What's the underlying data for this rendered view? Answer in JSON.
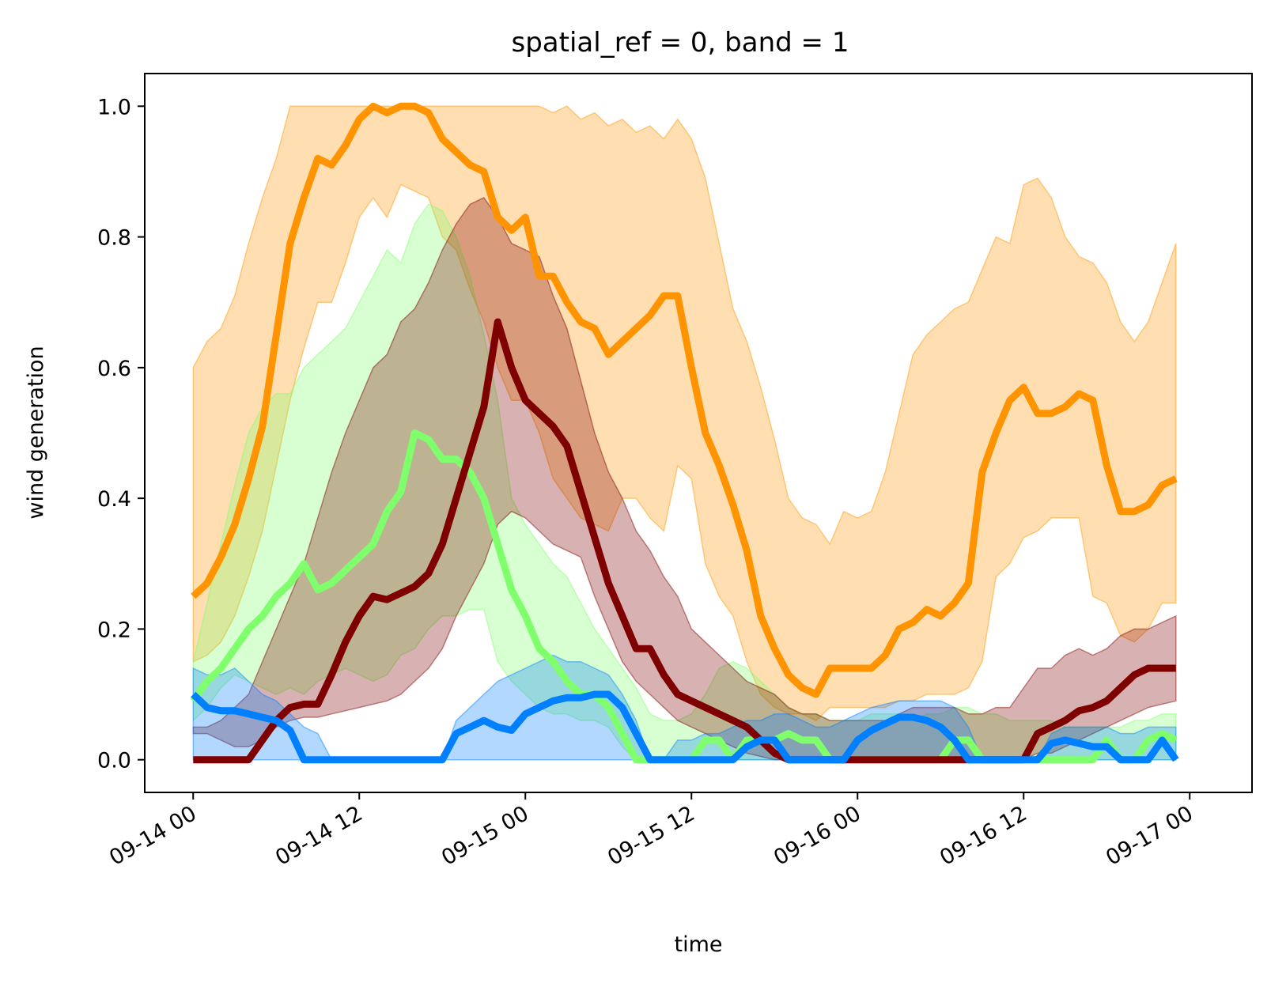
{
  "chart_data": {
    "type": "line",
    "title": "spatial_ref = 0, band = 1",
    "xlabel": "time",
    "ylabel": "wind generation",
    "x_start": "09-14 00",
    "x_step_hours": 1,
    "xlim_hours": [
      -3.5,
      76.5
    ],
    "ylim": [
      -0.05,
      1.05
    ],
    "x_tick_hours": [
      0,
      12,
      24,
      36,
      48,
      60,
      72
    ],
    "x_tick_labels": [
      "09-14 00",
      "09-14 12",
      "09-15 00",
      "09-15 12",
      "09-16 00",
      "09-16 12",
      "09-17 00"
    ],
    "y_ticks": [
      0.0,
      0.2,
      0.4,
      0.6,
      0.8,
      1.0
    ],
    "y_tick_labels": [
      "0.0",
      "0.2",
      "0.4",
      "0.6",
      "0.8",
      "1.0"
    ],
    "grid": false,
    "legend": "none",
    "series": [
      {
        "color": "#ff9400",
        "values": [
          0.25,
          0.27,
          0.31,
          0.36,
          0.43,
          0.51,
          0.65,
          0.79,
          0.86,
          0.92,
          0.91,
          0.94,
          0.98,
          1.0,
          0.99,
          1.0,
          1.0,
          0.99,
          0.95,
          0.93,
          0.91,
          0.9,
          0.83,
          0.81,
          0.83,
          0.74,
          0.74,
          0.7,
          0.67,
          0.66,
          0.62,
          0.64,
          0.66,
          0.68,
          0.71,
          0.71,
          0.6,
          0.5,
          0.45,
          0.39,
          0.32,
          0.22,
          0.17,
          0.13,
          0.11,
          0.1,
          0.14,
          0.14,
          0.14,
          0.14,
          0.16,
          0.2,
          0.21,
          0.23,
          0.22,
          0.24,
          0.27,
          0.44,
          0.5,
          0.55,
          0.57,
          0.53,
          0.53,
          0.54,
          0.56,
          0.55,
          0.45,
          0.38,
          0.38,
          0.39,
          0.42,
          0.43
        ],
        "lower": [
          0.15,
          0.16,
          0.18,
          0.22,
          0.28,
          0.35,
          0.45,
          0.55,
          0.63,
          0.7,
          0.7,
          0.76,
          0.83,
          0.86,
          0.83,
          0.88,
          0.87,
          0.86,
          0.8,
          0.78,
          0.72,
          0.67,
          0.6,
          0.55,
          0.55,
          0.5,
          0.43,
          0.4,
          0.37,
          0.36,
          0.35,
          0.4,
          0.4,
          0.37,
          0.35,
          0.45,
          0.43,
          0.3,
          0.25,
          0.22,
          0.15,
          0.1,
          0.08,
          0.07,
          0.07,
          0.06,
          0.08,
          0.08,
          0.08,
          0.08,
          0.08,
          0.09,
          0.09,
          0.1,
          0.1,
          0.1,
          0.11,
          0.15,
          0.28,
          0.3,
          0.34,
          0.35,
          0.37,
          0.37,
          0.37,
          0.25,
          0.24,
          0.19,
          0.18,
          0.2,
          0.24,
          0.24
        ],
        "upper": [
          0.6,
          0.64,
          0.66,
          0.71,
          0.79,
          0.86,
          0.92,
          1.0,
          1.0,
          1.0,
          1.0,
          1.0,
          1.0,
          1.0,
          1.0,
          1.0,
          1.0,
          1.0,
          1.0,
          1.0,
          1.0,
          1.0,
          1.0,
          1.0,
          1.0,
          1.0,
          0.99,
          1.0,
          0.98,
          0.99,
          0.97,
          0.98,
          0.96,
          0.97,
          0.95,
          0.98,
          0.95,
          0.89,
          0.79,
          0.69,
          0.64,
          0.57,
          0.49,
          0.4,
          0.37,
          0.36,
          0.33,
          0.38,
          0.37,
          0.38,
          0.44,
          0.53,
          0.62,
          0.65,
          0.67,
          0.69,
          0.7,
          0.75,
          0.8,
          0.79,
          0.88,
          0.89,
          0.86,
          0.8,
          0.77,
          0.76,
          0.73,
          0.67,
          0.64,
          0.67,
          0.73,
          0.79
        ]
      },
      {
        "color": "#7fff6b",
        "values": [
          0.09,
          0.12,
          0.14,
          0.17,
          0.2,
          0.22,
          0.25,
          0.27,
          0.3,
          0.26,
          0.27,
          0.29,
          0.31,
          0.33,
          0.38,
          0.41,
          0.5,
          0.49,
          0.46,
          0.46,
          0.44,
          0.4,
          0.33,
          0.26,
          0.22,
          0.17,
          0.15,
          0.12,
          0.1,
          0.1,
          0.08,
          0.04,
          0.0,
          0.0,
          0.0,
          0.0,
          0.0,
          0.03,
          0.03,
          0.0,
          0.03,
          0.03,
          0.03,
          0.04,
          0.03,
          0.03,
          0.0,
          0.0,
          0.0,
          0.0,
          0.0,
          0.0,
          0.0,
          0.0,
          0.0,
          0.03,
          0.03,
          0.0,
          0.0,
          0.0,
          0.0,
          0.0,
          0.0,
          0.0,
          0.0,
          0.0,
          0.03,
          0.0,
          0.0,
          0.03,
          0.04,
          0.03
        ],
        "lower": [
          0.06,
          0.08,
          0.11,
          0.13,
          0.12,
          0.11,
          0.1,
          0.11,
          0.1,
          0.12,
          0.13,
          0.14,
          0.13,
          0.12,
          0.13,
          0.16,
          0.17,
          0.2,
          0.22,
          0.22,
          0.23,
          0.23,
          0.15,
          0.12,
          0.1,
          0.08,
          0.07,
          0.07,
          0.06,
          0.06,
          0.05,
          0.02,
          0.0,
          0.0,
          0.0,
          0.0,
          0.0,
          0.0,
          0.0,
          0.0,
          0.0,
          0.0,
          0.0,
          0.0,
          0.0,
          0.0,
          0.0,
          0.0,
          0.0,
          0.0,
          0.0,
          0.0,
          0.0,
          0.0,
          0.0,
          0.0,
          0.0,
          0.0,
          0.0,
          0.0,
          0.0,
          0.0,
          0.0,
          0.0,
          0.0,
          0.0,
          0.0,
          0.0,
          0.0,
          0.0,
          0.0,
          0.0
        ],
        "upper": [
          0.15,
          0.24,
          0.33,
          0.42,
          0.5,
          0.54,
          0.56,
          0.56,
          0.6,
          0.62,
          0.64,
          0.66,
          0.7,
          0.74,
          0.78,
          0.76,
          0.82,
          0.85,
          0.84,
          0.8,
          0.74,
          0.65,
          0.55,
          0.4,
          0.36,
          0.33,
          0.3,
          0.28,
          0.24,
          0.2,
          0.17,
          0.14,
          0.11,
          0.07,
          0.06,
          0.06,
          0.07,
          0.1,
          0.14,
          0.15,
          0.14,
          0.12,
          0.1,
          0.08,
          0.07,
          0.07,
          0.06,
          0.06,
          0.06,
          0.07,
          0.07,
          0.07,
          0.06,
          0.07,
          0.07,
          0.08,
          0.08,
          0.07,
          0.07,
          0.06,
          0.06,
          0.06,
          0.06,
          0.05,
          0.05,
          0.05,
          0.05,
          0.05,
          0.06,
          0.06,
          0.07,
          0.07
        ]
      },
      {
        "color": "#7f0000",
        "values": [
          0.0,
          0.0,
          0.0,
          0.0,
          0.0,
          0.03,
          0.06,
          0.08,
          0.085,
          0.085,
          0.13,
          0.18,
          0.22,
          0.25,
          0.245,
          0.255,
          0.265,
          0.285,
          0.33,
          0.4,
          0.47,
          0.54,
          0.67,
          0.6,
          0.55,
          0.53,
          0.51,
          0.48,
          0.41,
          0.34,
          0.27,
          0.22,
          0.17,
          0.17,
          0.13,
          0.1,
          0.09,
          0.08,
          0.07,
          0.06,
          0.05,
          0.03,
          0.01,
          0.0,
          0.0,
          0.0,
          0.0,
          0.0,
          0.0,
          0.0,
          0.0,
          0.0,
          0.0,
          0.0,
          0.0,
          0.0,
          0.0,
          0.0,
          0.0,
          0.0,
          0.0,
          0.04,
          0.05,
          0.06,
          0.075,
          0.08,
          0.09,
          0.11,
          0.13,
          0.14,
          0.14,
          0.14
        ],
        "lower": [
          0.04,
          0.04,
          0.03,
          0.02,
          0.02,
          0.03,
          0.05,
          0.06,
          0.065,
          0.065,
          0.07,
          0.075,
          0.08,
          0.085,
          0.09,
          0.1,
          0.12,
          0.14,
          0.17,
          0.22,
          0.26,
          0.3,
          0.36,
          0.38,
          0.37,
          0.35,
          0.33,
          0.32,
          0.31,
          0.25,
          0.2,
          0.15,
          0.12,
          0.1,
          0.08,
          0.06,
          0.05,
          0.04,
          0.03,
          0.02,
          0.01,
          0.005,
          0.0,
          0.0,
          0.0,
          0.0,
          0.0,
          0.0,
          0.0,
          0.0,
          0.0,
          0.0,
          0.0,
          0.0,
          0.0,
          0.0,
          0.0,
          0.0,
          0.0,
          0.0,
          0.0,
          0.01,
          0.01,
          0.02,
          0.03,
          0.04,
          0.05,
          0.06,
          0.07,
          0.08,
          0.085,
          0.09
        ],
        "upper": [
          0.05,
          0.05,
          0.06,
          0.08,
          0.1,
          0.15,
          0.2,
          0.25,
          0.3,
          0.37,
          0.44,
          0.5,
          0.55,
          0.6,
          0.62,
          0.67,
          0.69,
          0.73,
          0.78,
          0.82,
          0.85,
          0.86,
          0.83,
          0.79,
          0.78,
          0.77,
          0.71,
          0.66,
          0.58,
          0.5,
          0.44,
          0.4,
          0.35,
          0.32,
          0.28,
          0.25,
          0.2,
          0.18,
          0.16,
          0.14,
          0.12,
          0.11,
          0.1,
          0.08,
          0.07,
          0.07,
          0.06,
          0.06,
          0.06,
          0.06,
          0.06,
          0.07,
          0.08,
          0.08,
          0.08,
          0.08,
          0.07,
          0.07,
          0.08,
          0.08,
          0.11,
          0.14,
          0.14,
          0.16,
          0.17,
          0.16,
          0.17,
          0.19,
          0.2,
          0.2,
          0.21,
          0.22
        ]
      },
      {
        "color": "#007fff",
        "values": [
          0.1,
          0.08,
          0.075,
          0.075,
          0.07,
          0.065,
          0.06,
          0.045,
          0.0,
          0.0,
          0.0,
          0.0,
          0.0,
          0.0,
          0.0,
          0.0,
          0.0,
          0.0,
          0.0,
          0.04,
          0.05,
          0.06,
          0.05,
          0.045,
          0.07,
          0.08,
          0.09,
          0.095,
          0.095,
          0.1,
          0.1,
          0.08,
          0.04,
          0.0,
          0.0,
          0.0,
          0.0,
          0.0,
          0.0,
          0.0,
          0.02,
          0.03,
          0.03,
          0.0,
          0.0,
          0.0,
          0.0,
          0.0,
          0.03,
          0.045,
          0.055,
          0.065,
          0.065,
          0.06,
          0.05,
          0.03,
          0.0,
          0.0,
          0.0,
          0.0,
          0.0,
          0.0,
          0.025,
          0.03,
          0.025,
          0.02,
          0.02,
          0.0,
          0.0,
          0.0,
          0.03,
          0.0
        ],
        "lower": [
          0.0,
          0.0,
          0.0,
          0.0,
          0.0,
          0.0,
          0.0,
          0.0,
          0.0,
          0.0,
          0.0,
          0.0,
          0.0,
          0.0,
          0.0,
          0.0,
          0.0,
          0.0,
          0.0,
          0.0,
          0.0,
          0.0,
          0.0,
          0.0,
          0.0,
          0.0,
          0.0,
          0.0,
          0.0,
          0.0,
          0.0,
          0.0,
          0.0,
          0.0,
          0.0,
          0.0,
          0.0,
          0.0,
          0.0,
          0.0,
          0.0,
          0.0,
          0.0,
          0.0,
          0.0,
          0.0,
          0.0,
          0.0,
          0.0,
          0.0,
          0.0,
          0.0,
          0.0,
          0.0,
          0.0,
          0.0,
          0.0,
          0.0,
          0.0,
          0.0,
          0.0,
          0.0,
          0.0,
          0.0,
          0.0,
          0.0,
          0.0,
          0.0,
          0.0,
          0.0,
          0.0,
          0.0
        ],
        "upper": [
          0.14,
          0.13,
          0.13,
          0.14,
          0.12,
          0.1,
          0.09,
          0.07,
          0.05,
          0.04,
          0.0,
          0.0,
          0.0,
          0.0,
          0.0,
          0.0,
          0.0,
          0.0,
          0.0,
          0.06,
          0.08,
          0.1,
          0.12,
          0.13,
          0.14,
          0.15,
          0.16,
          0.15,
          0.15,
          0.14,
          0.13,
          0.1,
          0.06,
          0.0,
          0.0,
          0.03,
          0.03,
          0.04,
          0.04,
          0.05,
          0.06,
          0.06,
          0.07,
          0.07,
          0.06,
          0.05,
          0.05,
          0.06,
          0.07,
          0.08,
          0.085,
          0.09,
          0.09,
          0.09,
          0.09,
          0.08,
          0.05,
          0.0,
          0.0,
          0.0,
          0.0,
          0.0,
          0.04,
          0.05,
          0.05,
          0.05,
          0.05,
          0.04,
          0.04,
          0.05,
          0.05,
          0.05
        ]
      }
    ]
  }
}
